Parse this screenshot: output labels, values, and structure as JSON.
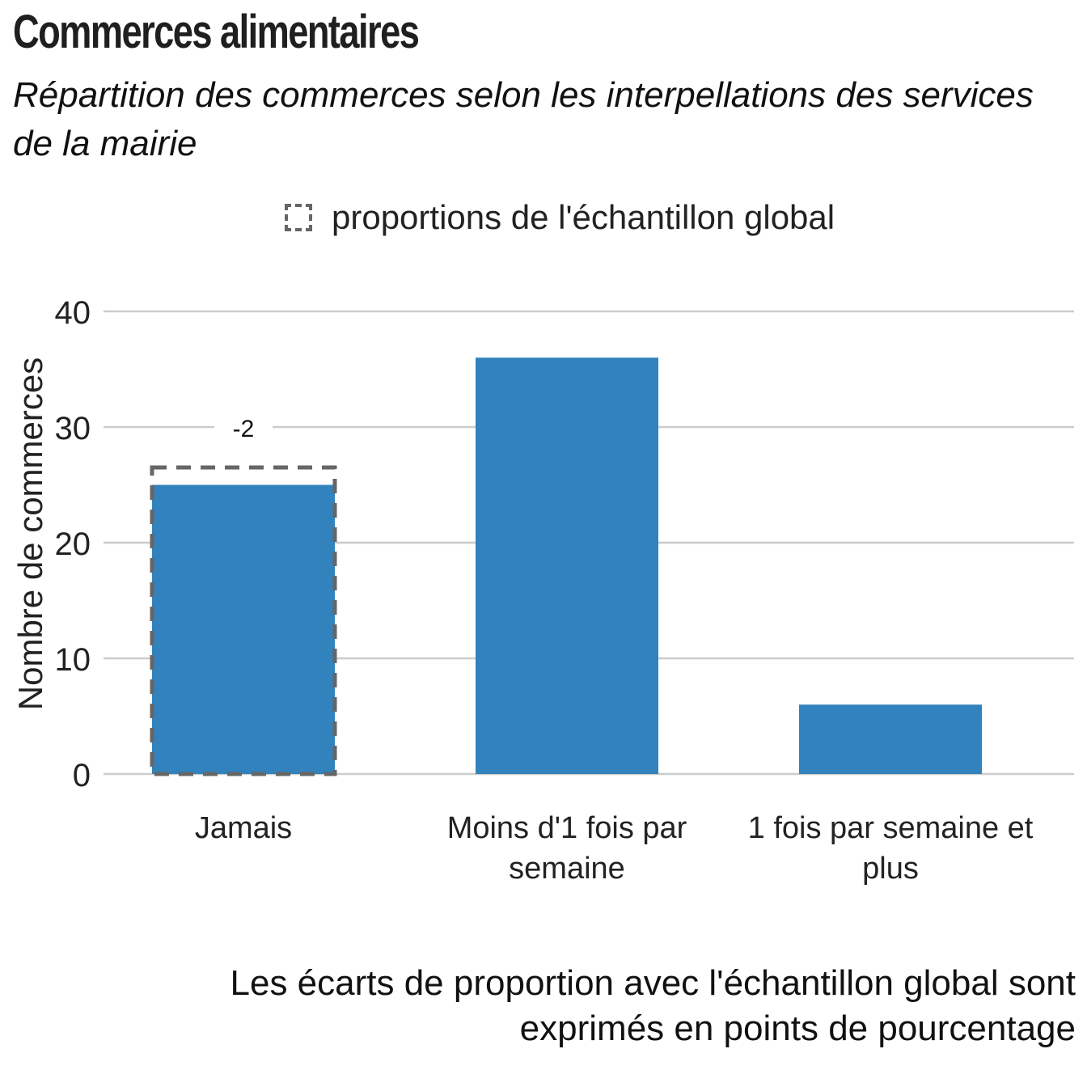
{
  "chart_data": {
    "type": "bar",
    "title": "Commerces alimentaires",
    "subtitle": "Répartition des commerces selon les interpellations des services de la mairie",
    "ylabel": "Nombre de commerces",
    "xlabel": "",
    "ylim": [
      0,
      40
    ],
    "yticks": [
      0,
      10,
      20,
      30,
      40
    ],
    "grid": true,
    "legend_position": "top",
    "categories": [
      "Jamais",
      "Moins d'1 fois par semaine",
      "1 fois par semaine et plus"
    ],
    "category_label_lines": [
      [
        "Jamais"
      ],
      [
        "Moins d'1 fois par",
        "semaine"
      ],
      [
        "1 fois par semaine et",
        "plus"
      ]
    ],
    "values": [
      25,
      36,
      6
    ],
    "reference": {
      "name": "proportions de l'échantillon global",
      "values": [
        26.5,
        null,
        null
      ],
      "labels": [
        "-2",
        "",
        ""
      ]
    },
    "footnote": "Les écarts de proportion avec l'échantillon global sont exprimés en points de pourcentage",
    "footnote_lines": [
      "Les écarts de proportion avec l'échantillon global sont",
      "exprimés en points de pourcentage"
    ],
    "colors": {
      "bar": "#3282BD",
      "reference_outline": "#666666",
      "grid": "#CCCCCC",
      "text": "#222222"
    }
  }
}
